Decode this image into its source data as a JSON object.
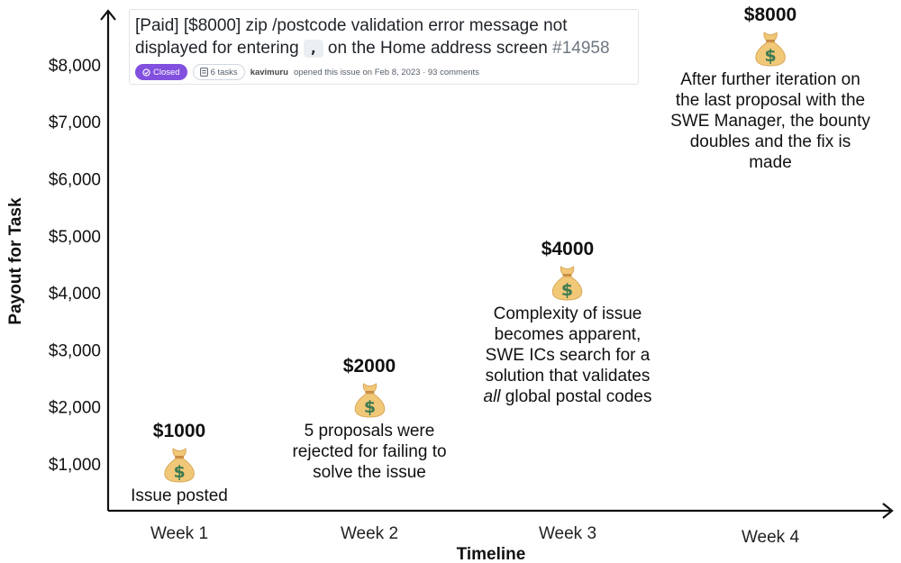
{
  "issue": {
    "title_part1": "[Paid] [$8000] zip /postcode validation error message not displayed for entering",
    "code": ",",
    "title_part2": "on the Home address screen",
    "number": "#14958",
    "status": "Closed",
    "tasks": "6 tasks",
    "author": "kavimuru",
    "meta": "opened this issue on Feb 8, 2023 · 93 comments"
  },
  "icons": {
    "bag": "money-bag-icon",
    "closed": "check-circle-icon",
    "tasks": "checklist-icon"
  },
  "colors": {
    "bag": "#f0c878",
    "bag_dollar": "#3d7a52",
    "closed_badge": "#8250df"
  },
  "chart_data": {
    "type": "scatter",
    "xlabel": "Timeline",
    "ylabel": "Payout for Task",
    "categories": [
      "Week 1",
      "Week 2",
      "Week 3",
      "Week 4"
    ],
    "yticks": [
      "$1,000",
      "$2,000",
      "$3,000",
      "$4,000",
      "$5,000",
      "$6,000",
      "$7,000",
      "$8,000"
    ],
    "ylim": [
      0,
      8700
    ],
    "grid": false,
    "points": [
      {
        "x": "Week 1",
        "y": 1000,
        "label": "$1000",
        "caption": [
          "Issue posted"
        ]
      },
      {
        "x": "Week 2",
        "y": 2000,
        "label": "$2000",
        "caption": [
          "5 proposals were",
          "rejected for failing to",
          "solve the issue"
        ]
      },
      {
        "x": "Week 3",
        "y": 4000,
        "label": "$4000",
        "caption": [
          "Complexity of issue",
          "becomes apparent,",
          "SWE ICs search for a",
          "solution that validates",
          "all global postal codes"
        ]
      },
      {
        "x": "Week 4",
        "y": 8000,
        "label": "$8000",
        "caption": [
          "After further iteration on",
          "the last proposal with the",
          "SWE Manager, the bounty",
          "doubles and the fix is",
          "made"
        ]
      }
    ]
  }
}
